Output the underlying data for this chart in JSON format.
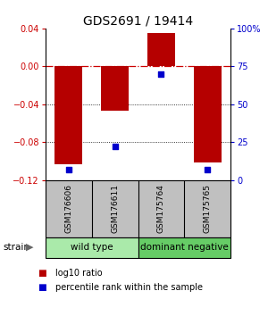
{
  "title": "GDS2691 / 19414",
  "samples": [
    "GSM176606",
    "GSM176611",
    "GSM175764",
    "GSM175765"
  ],
  "log10_ratio": [
    -0.103,
    -0.047,
    0.035,
    -0.101
  ],
  "percentile_rank": [
    0.07,
    0.22,
    0.7,
    0.07
  ],
  "ylim_left": [
    -0.12,
    0.04
  ],
  "ylim_right": [
    0,
    100
  ],
  "yticks_left": [
    -0.12,
    -0.08,
    -0.04,
    0,
    0.04
  ],
  "yticks_right": [
    0,
    25,
    50,
    75,
    100
  ],
  "bar_color": "#b50000",
  "square_color": "#0000cc",
  "bar_width": 0.6,
  "groups": [
    {
      "label": "wild type",
      "samples": [
        0,
        1
      ],
      "color": "#aaeaaa"
    },
    {
      "label": "dominant negative",
      "samples": [
        2,
        3
      ],
      "color": "#66cc66"
    }
  ],
  "sample_box_color": "#c0c0c0",
  "strain_label": "strain",
  "legend_red_label": "log10 ratio",
  "legend_blue_label": "percentile rank within the sample",
  "zero_line_color": "#cc0000",
  "grid_color": "#333333",
  "left_tick_color": "#cc0000",
  "right_tick_color": "#0000cc",
  "title_fontsize": 10,
  "tick_fontsize": 7,
  "sample_fontsize": 6.5,
  "group_fontsize": 7.5,
  "legend_fontsize": 7
}
